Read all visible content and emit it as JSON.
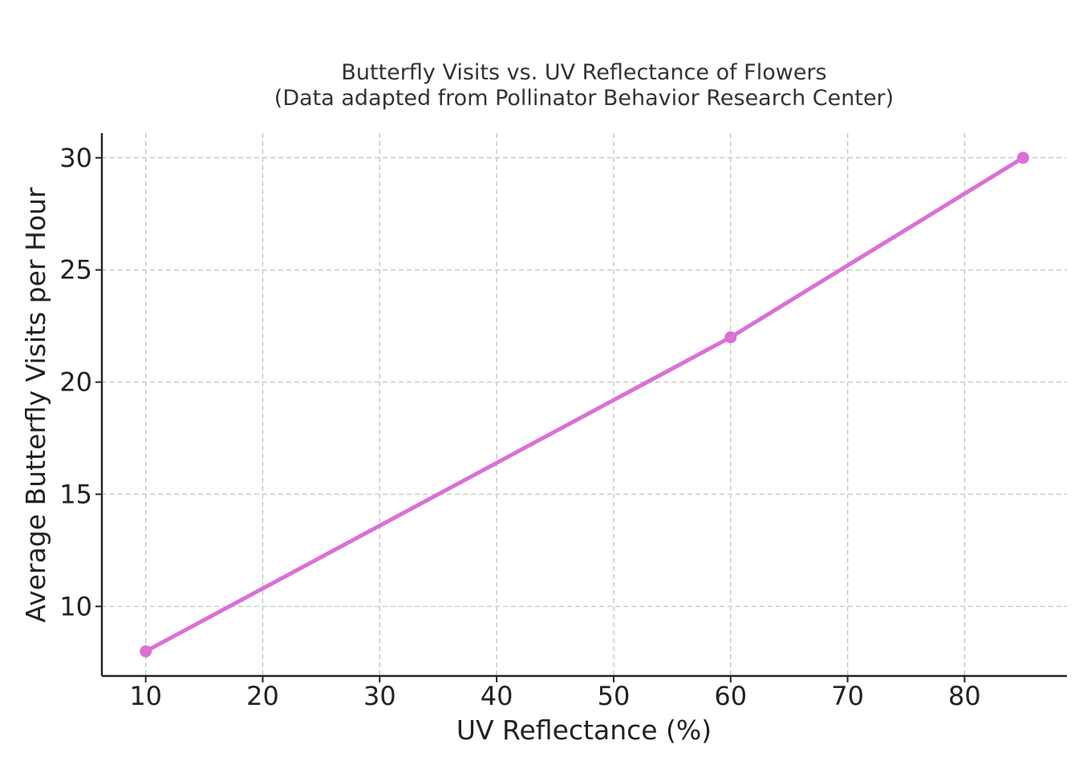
{
  "chart_data": {
    "type": "line",
    "title": "Butterfly Visits vs. UV Reflectance of Flowers",
    "subtitle": "(Data adapted from Pollinator Behavior Research Center)",
    "xlabel": "UV Reflectance (%)",
    "ylabel": "Average Butterfly Visits per Hour",
    "x": [
      10,
      60,
      85
    ],
    "series": [
      {
        "values": [
          8,
          22,
          30
        ]
      }
    ],
    "xlim": [
      6.25,
      88.75
    ],
    "ylim": [
      6.9,
      31.1
    ],
    "xticks": [
      10,
      20,
      30,
      40,
      50,
      60,
      70,
      80
    ],
    "yticks": [
      10,
      15,
      20,
      25,
      30
    ],
    "grid": true,
    "line_color": "#da70d6",
    "axis_color": "#222222",
    "grid_color": "#c4c4c4"
  }
}
